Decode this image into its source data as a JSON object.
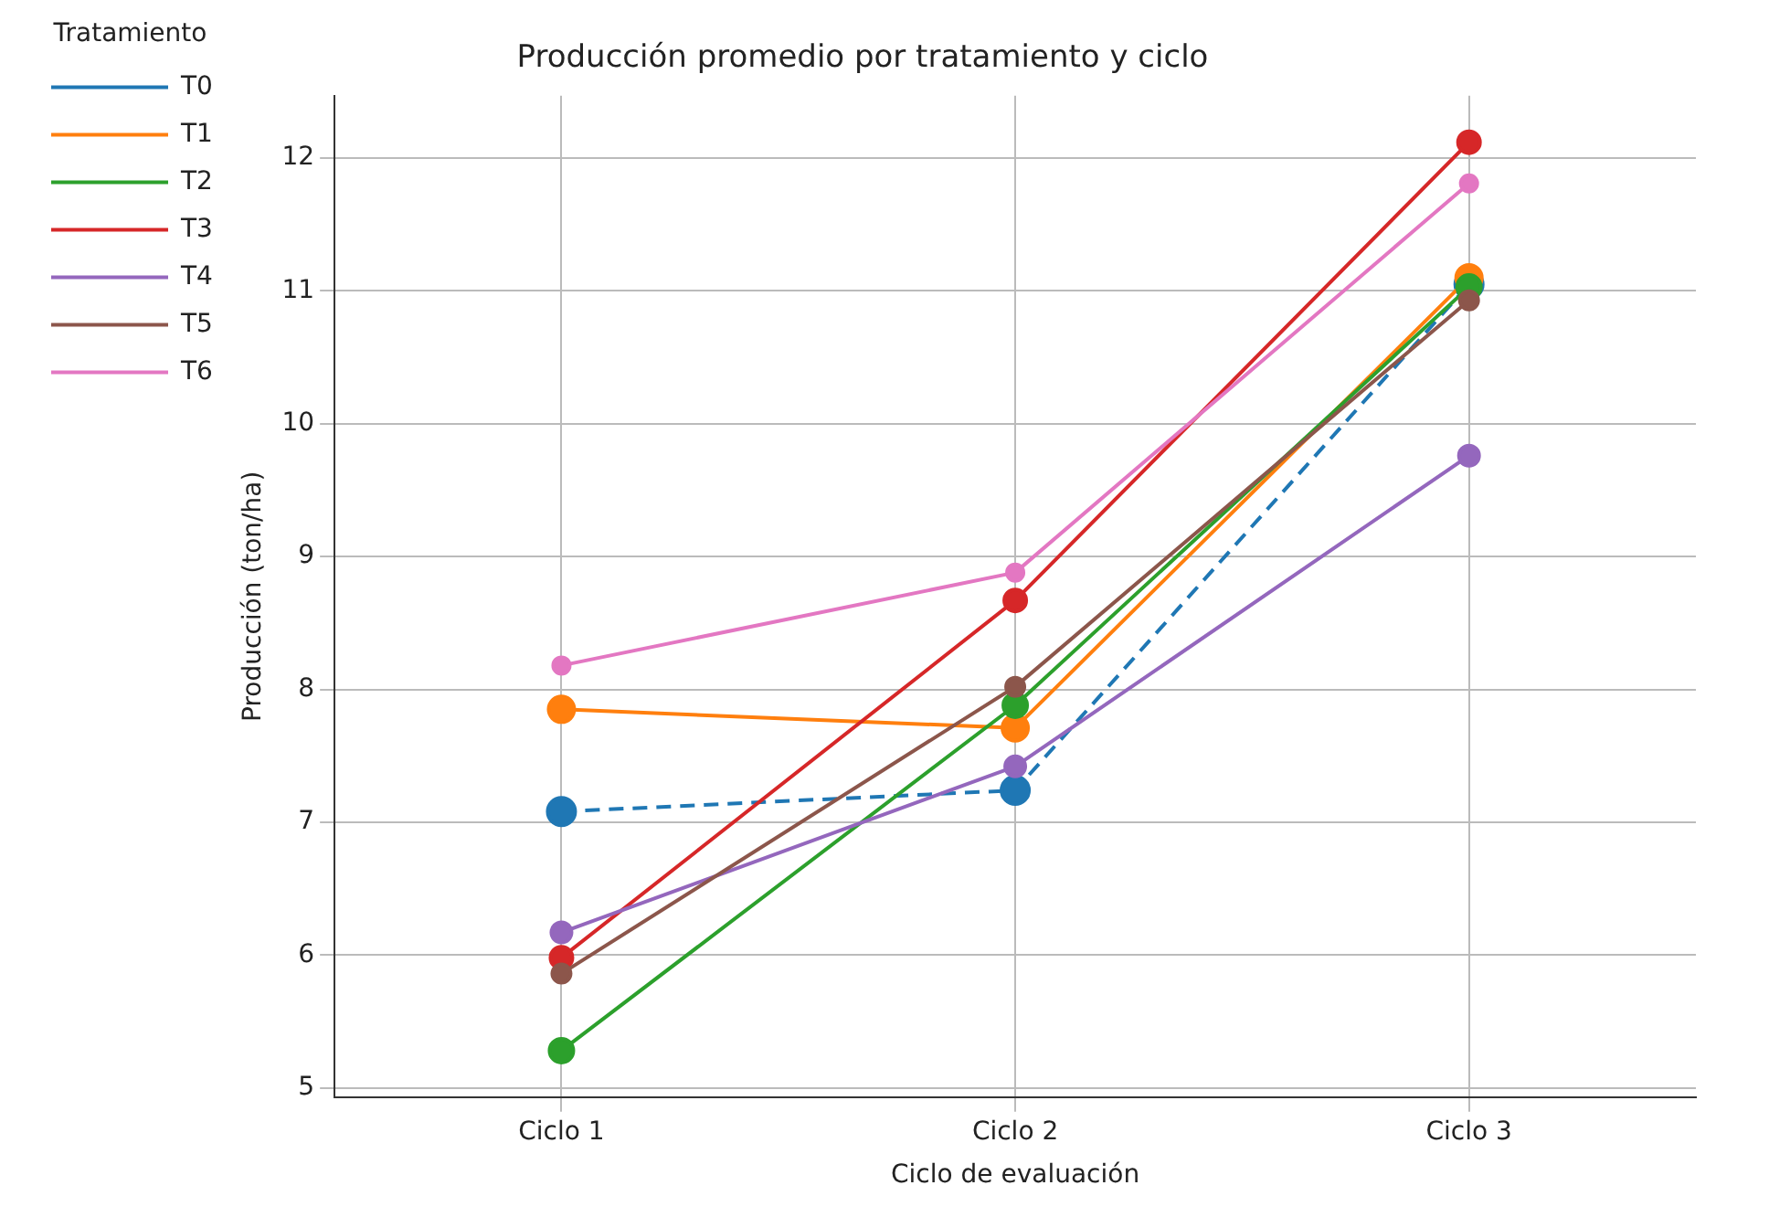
{
  "chart_data": {
    "type": "line",
    "title": "Producción promedio por tratamiento y ciclo",
    "xlabel": "Ciclo de evaluación",
    "ylabel": "Producción (ton/ha)",
    "legend_title": "Tratamiento",
    "categories": [
      "Ciclo 1",
      "Ciclo 2",
      "Ciclo 3"
    ],
    "series": [
      {
        "name": "T0",
        "color": "#1f77b4",
        "values": [
          7.08,
          7.24,
          11.05
        ],
        "line_style": "dashed"
      },
      {
        "name": "T1",
        "color": "#ff7f0e",
        "values": [
          7.85,
          7.71,
          11.1
        ]
      },
      {
        "name": "T2",
        "color": "#2ca02c",
        "values": [
          5.28,
          7.88,
          11.03
        ]
      },
      {
        "name": "T3",
        "color": "#d62728",
        "values": [
          5.98,
          8.67,
          12.12
        ]
      },
      {
        "name": "T4",
        "color": "#9467bd",
        "values": [
          6.17,
          7.42,
          9.76
        ]
      },
      {
        "name": "T5",
        "color": "#8c564b",
        "values": [
          5.86,
          8.02,
          10.93
        ]
      },
      {
        "name": "T6",
        "color": "#e377c2",
        "values": [
          8.18,
          8.88,
          11.81
        ]
      }
    ],
    "ylim": [
      4.93,
      12.47
    ],
    "yticks": [
      5,
      6,
      7,
      8,
      9,
      10,
      11,
      12
    ],
    "grid": true,
    "legend": "top left",
    "marker": "circle",
    "line_style": "solid"
  }
}
